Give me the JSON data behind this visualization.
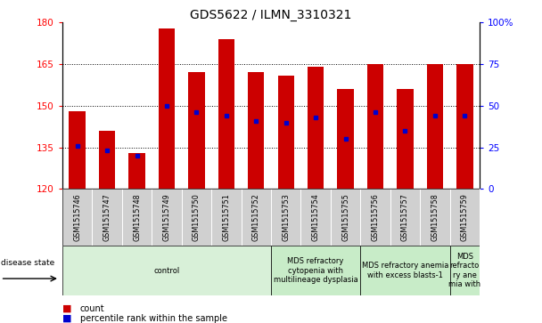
{
  "title": "GDS5622 / ILMN_3310321",
  "samples": [
    "GSM1515746",
    "GSM1515747",
    "GSM1515748",
    "GSM1515749",
    "GSM1515750",
    "GSM1515751",
    "GSM1515752",
    "GSM1515753",
    "GSM1515754",
    "GSM1515755",
    "GSM1515756",
    "GSM1515757",
    "GSM1515758",
    "GSM1515759"
  ],
  "counts": [
    148,
    141,
    133,
    178,
    162,
    174,
    162,
    161,
    164,
    156,
    165,
    156,
    165,
    165
  ],
  "percentile_ranks": [
    26,
    23,
    20,
    50,
    46,
    44,
    41,
    40,
    43,
    30,
    46,
    35,
    44,
    44
  ],
  "ylim_left": [
    120,
    180
  ],
  "ylim_right": [
    0,
    100
  ],
  "yticks_left": [
    120,
    135,
    150,
    165,
    180
  ],
  "yticks_right": [
    0,
    25,
    50,
    75,
    100
  ],
  "bar_color": "#cc0000",
  "dot_color": "#0000cc",
  "bar_width": 0.55,
  "disease_groups": [
    {
      "label": "control",
      "start": 0,
      "end": 7,
      "color": "#d8f0d8"
    },
    {
      "label": "MDS refractory\ncytopenia with\nmultilineage dysplasia",
      "start": 7,
      "end": 10,
      "color": "#c8ecc8"
    },
    {
      "label": "MDS refractory anemia\nwith excess blasts-1",
      "start": 10,
      "end": 13,
      "color": "#c8ecc8"
    },
    {
      "label": "MDS\nrefracto\nry ane\nmia with",
      "start": 13,
      "end": 14,
      "color": "#c8ecc8"
    }
  ],
  "disease_state_label": "disease state",
  "legend_count_label": "count",
  "legend_percentile_label": "percentile rank within the sample",
  "title_fontsize": 10,
  "tick_fontsize": 7.5,
  "sample_fontsize": 5.8,
  "disease_fontsize": 6.0
}
